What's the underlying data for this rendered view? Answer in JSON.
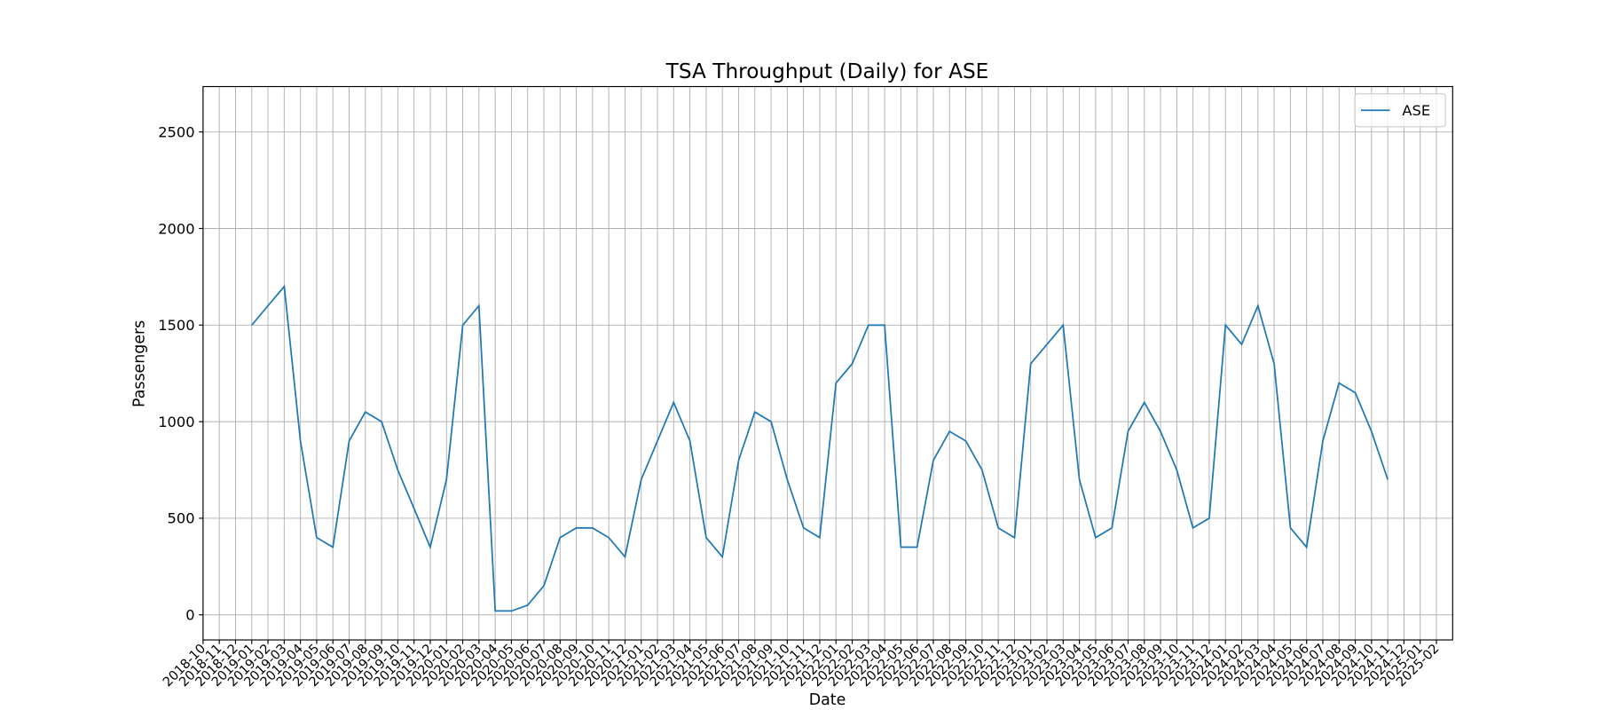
{
  "chart_data": {
    "type": "line",
    "title": "TSA Throughput (Daily) for ASE",
    "x_label": "Date",
    "y_label": "Passengers",
    "x": [
      "2019-01",
      "2019-02",
      "2019-03",
      "2019-04",
      "2019-05",
      "2019-06",
      "2019-07",
      "2019-08",
      "2019-09",
      "2019-10",
      "2019-11",
      "2019-12",
      "2020-01",
      "2020-02",
      "2020-03",
      "2020-04",
      "2020-05",
      "2020-06",
      "2020-07",
      "2020-08",
      "2020-09",
      "2020-10",
      "2020-11",
      "2020-12",
      "2021-01",
      "2021-02",
      "2021-03",
      "2021-04",
      "2021-05",
      "2021-06",
      "2021-07",
      "2021-08",
      "2021-09",
      "2021-10",
      "2021-11",
      "2021-12",
      "2022-01",
      "2022-02",
      "2022-03",
      "2022-04",
      "2022-05",
      "2022-06",
      "2022-07",
      "2022-08",
      "2022-09",
      "2022-10",
      "2022-11",
      "2022-12",
      "2023-01",
      "2023-02",
      "2023-03",
      "2023-04",
      "2023-05",
      "2023-06",
      "2023-07",
      "2023-08",
      "2023-09",
      "2023-10",
      "2023-11",
      "2023-12",
      "2024-01",
      "2024-02",
      "2024-03",
      "2024-04",
      "2024-05",
      "2024-06",
      "2024-07",
      "2024-08",
      "2024-09",
      "2024-10",
      "2024-11"
    ],
    "series": [
      {
        "name": "ASE",
        "color": "#1f77b4",
        "values": [
          1500,
          1600,
          1700,
          900,
          400,
          350,
          900,
          1050,
          1000,
          750,
          550,
          350,
          700,
          1500,
          1600,
          20,
          20,
          50,
          150,
          400,
          450,
          450,
          400,
          300,
          700,
          900,
          1100,
          900,
          400,
          300,
          800,
          1050,
          1000,
          700,
          450,
          400,
          1200,
          1300,
          1500,
          1500,
          350,
          350,
          800,
          950,
          900,
          750,
          450,
          400,
          1300,
          1400,
          1500,
          700,
          400,
          450,
          950,
          1100,
          950,
          750,
          450,
          500,
          1500,
          1400,
          1600,
          1300,
          450,
          350,
          900,
          1200,
          1150,
          950,
          700
        ]
      }
    ],
    "xlim": [
      "2018-10",
      "2025-03"
    ],
    "xticks": [
      "2018-10",
      "2018-11",
      "2018-12",
      "2019-01",
      "2019-02",
      "2019-03",
      "2019-04",
      "2019-05",
      "2019-06",
      "2019-07",
      "2019-08",
      "2019-09",
      "2019-10",
      "2019-11",
      "2019-12",
      "2020-01",
      "2020-02",
      "2020-03",
      "2020-04",
      "2020-05",
      "2020-06",
      "2020-07",
      "2020-08",
      "2020-09",
      "2020-10",
      "2020-11",
      "2020-12",
      "2021-01",
      "2021-02",
      "2021-03",
      "2021-04",
      "2021-05",
      "2021-06",
      "2021-07",
      "2021-08",
      "2021-09",
      "2021-10",
      "2021-11",
      "2021-12",
      "2022-01",
      "2022-02",
      "2022-03",
      "2022-04",
      "2022-05",
      "2022-06",
      "2022-07",
      "2022-08",
      "2022-09",
      "2022-10",
      "2022-11",
      "2022-12",
      "2023-01",
      "2023-02",
      "2023-03",
      "2023-04",
      "2023-05",
      "2023-06",
      "2023-07",
      "2023-08",
      "2023-09",
      "2023-10",
      "2023-11",
      "2023-12",
      "2024-01",
      "2024-02",
      "2024-03",
      "2024-04",
      "2024-05",
      "2024-06",
      "2024-07",
      "2024-08",
      "2024-09",
      "2024-10",
      "2024-11",
      "2024-12",
      "2025-01",
      "2025-02"
    ],
    "ylim": [
      -130,
      2735
    ],
    "yticks": [
      0,
      500,
      1000,
      1500,
      2000,
      2500
    ],
    "grid": true,
    "legend": "upper right"
  }
}
